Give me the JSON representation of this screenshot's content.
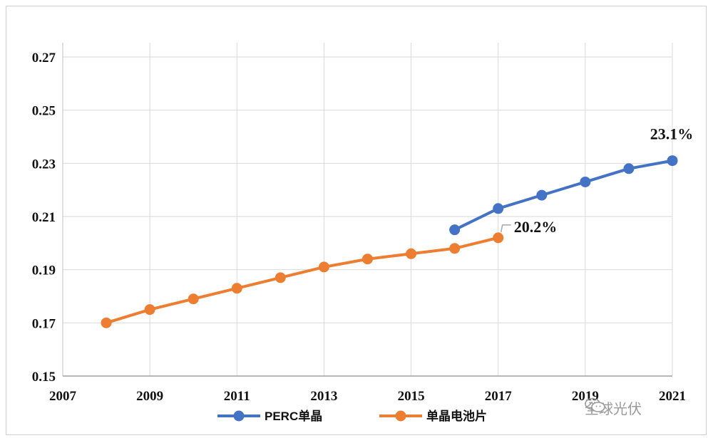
{
  "chart_data": {
    "type": "line",
    "title": "",
    "xlabel": "",
    "ylabel": "",
    "xlim": [
      2007,
      2021
    ],
    "ylim": [
      0.15,
      0.27
    ],
    "x_ticks": [
      "2007",
      "2009",
      "2011",
      "2013",
      "2015",
      "2017",
      "2019",
      "2021"
    ],
    "y_ticks": [
      "0.15",
      "0.17",
      "0.19",
      "0.21",
      "0.23",
      "0.25",
      "0.27"
    ],
    "grid": true,
    "legend_position": "bottom",
    "series": [
      {
        "name": "PERC单晶",
        "color": "#4472c4",
        "x": [
          2016,
          2017,
          2018,
          2019,
          2020,
          2021
        ],
        "values": [
          0.205,
          0.213,
          0.218,
          0.223,
          0.228,
          0.231
        ]
      },
      {
        "name": "单晶电池片",
        "color": "#ed7d31",
        "x": [
          2008,
          2009,
          2010,
          2011,
          2012,
          2013,
          2014,
          2015,
          2016,
          2017
        ],
        "values": [
          0.17,
          0.175,
          0.179,
          0.183,
          0.187,
          0.191,
          0.194,
          0.196,
          0.198,
          0.202
        ]
      }
    ],
    "annotations": [
      {
        "text": "23.1%",
        "series": 0,
        "point": 5
      },
      {
        "text": "20.2%",
        "series": 1,
        "point": 9
      }
    ]
  },
  "watermark": {
    "text": "全球光伏",
    "icon": "wechat-icon"
  }
}
